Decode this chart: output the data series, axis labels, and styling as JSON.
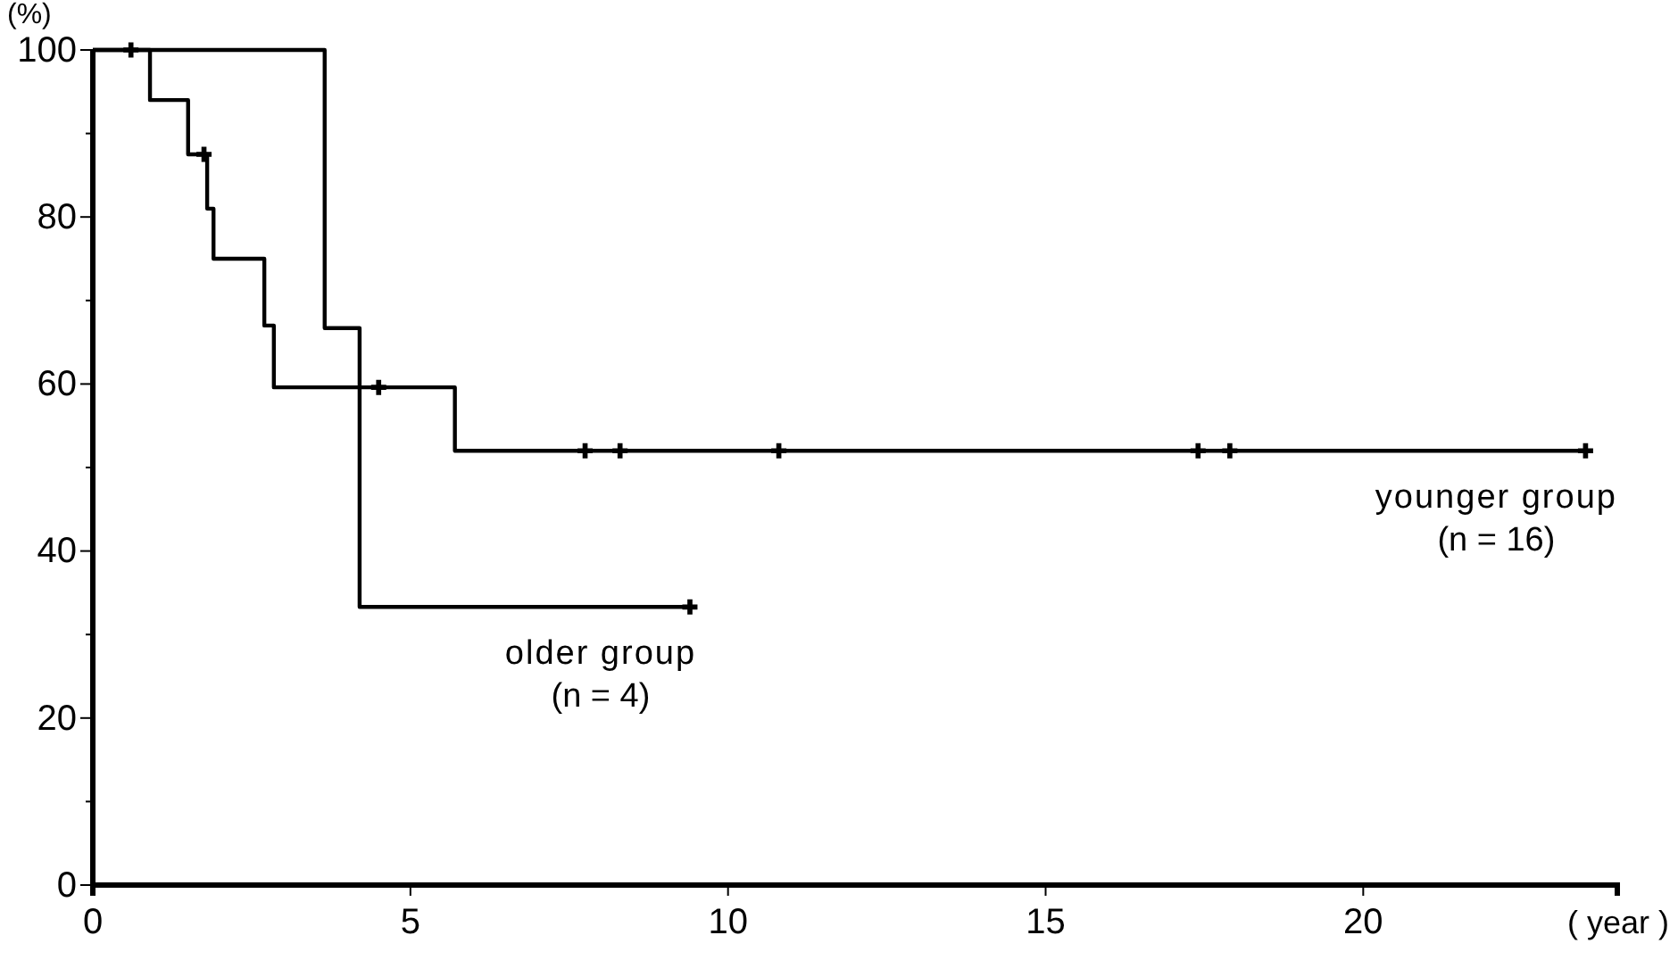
{
  "chart_data": {
    "type": "step",
    "xlabel": "( year )",
    "ylabel": "(%)",
    "xlim": [
      0,
      24
    ],
    "xticks": [
      0,
      5,
      10,
      15,
      20
    ],
    "ylim": [
      0,
      100
    ],
    "yticks": [
      0,
      {
        "value": 10,
        "label": null
      },
      20,
      {
        "value": 30,
        "label": null
      },
      40,
      {
        "value": 50,
        "label": null
      },
      60,
      {
        "value": 70,
        "label": null
      },
      80,
      {
        "value": 90,
        "label": null
      },
      100
    ],
    "grid": false,
    "line_style": "solid",
    "series": [
      {
        "name": "younger group",
        "color": "#000000",
        "x": [
          0,
          0.9,
          1.5,
          1.8,
          1.9,
          2.7,
          2.85,
          5.7,
          23.5
        ],
        "values": [
          100,
          94,
          87.5,
          81,
          75,
          67,
          59.6,
          52,
          52
        ]
      },
      {
        "name": "older group",
        "color": "#000000",
        "x": [
          0,
          3.65,
          4.2,
          9.4
        ],
        "values": [
          100,
          66.7,
          33.3,
          33.3
        ]
      },
      {
        "type": "scatter",
        "marker": "cross",
        "color": "#000000",
        "x": [
          0.6,
          1.75,
          4.5,
          7.75,
          8.3,
          10.8,
          17.4,
          17.9,
          23.5,
          9.4
        ],
        "values": [
          100,
          87.5,
          59.6,
          52,
          52,
          52,
          52,
          52,
          52,
          33.3
        ]
      }
    ],
    "annotations": [
      "(n = 16)",
      "(n = 4)"
    ]
  }
}
